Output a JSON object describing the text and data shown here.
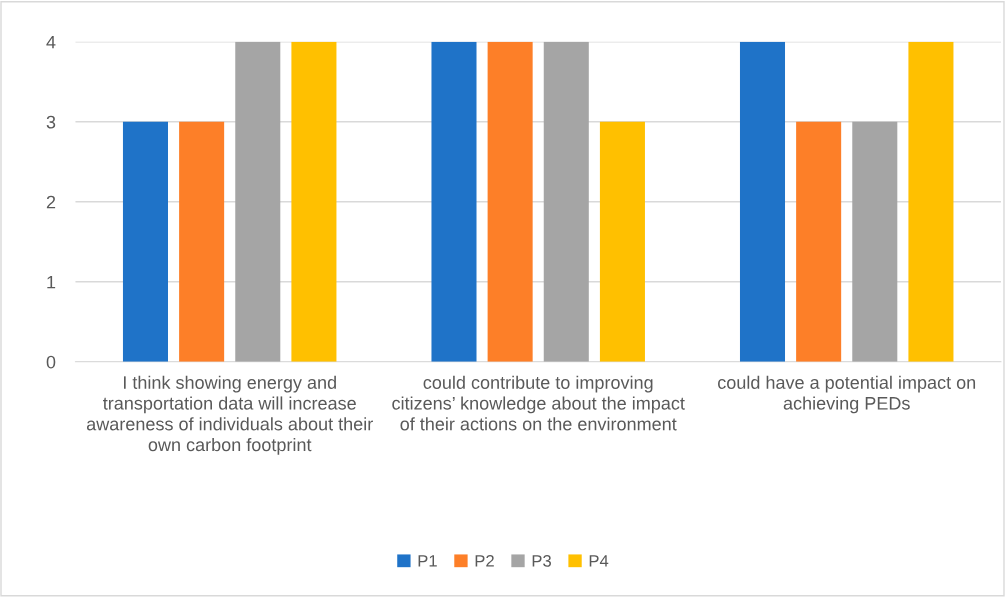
{
  "chart_data": {
    "type": "bar",
    "categories": [
      "I think showing energy and transportation data will increase awareness of individuals about their own carbon footprint",
      "could contribute to improving citizens’ knowledge about the impact of their actions on the environment",
      "could have a potential impact on achieving PEDs"
    ],
    "series": [
      {
        "name": "P1",
        "color": "#1f73c8",
        "values": [
          3,
          4,
          4
        ]
      },
      {
        "name": "P2",
        "color": "#fd7f28",
        "values": [
          3,
          4,
          3
        ]
      },
      {
        "name": "P3",
        "color": "#a5a5a5",
        "values": [
          4,
          4,
          3
        ]
      },
      {
        "name": "P4",
        "color": "#ffc000",
        "values": [
          4,
          3,
          4
        ]
      }
    ],
    "ylim": [
      0,
      4
    ],
    "yticks": [
      0,
      1,
      2,
      3,
      4
    ],
    "grid": "y",
    "legend": "bottom"
  }
}
